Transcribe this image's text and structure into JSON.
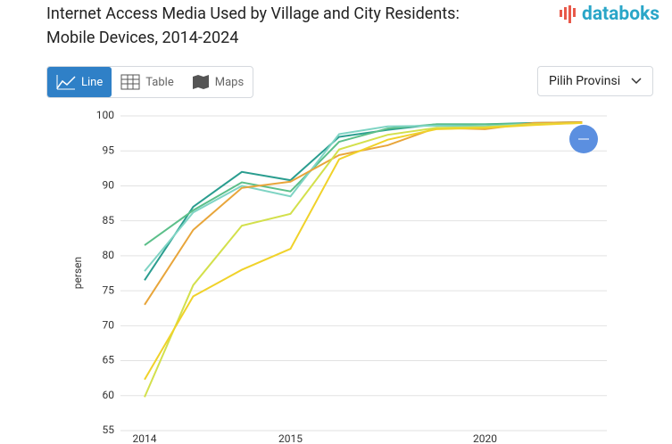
{
  "ui": {
    "logo": "databoks",
    "tabs": [
      "Line",
      "Table",
      "Maps"
    ],
    "province_select": "Pilih Provinsi"
  },
  "chart_data": {
    "type": "line",
    "title": "Internet Access Media Used by Village and City Residents: Mobile Devices, 2014-2024",
    "y_label": "persen",
    "categories": [
      "2014",
      null,
      null,
      "2015",
      null,
      null,
      null,
      "2020",
      null,
      null
    ],
    "ylim": [
      55,
      100
    ],
    "yticks": [
      55,
      60,
      65,
      70,
      75,
      80,
      85,
      90,
      95,
      100
    ],
    "grid": true,
    "series": [
      {
        "color": "#2a9d8f",
        "values": [
          76.5,
          87,
          92,
          90.8,
          97,
          98,
          98.8,
          98.8,
          99,
          99.1
        ]
      },
      {
        "color": "#5cbf8a",
        "values": [
          81.5,
          86.5,
          90.5,
          89.2,
          96.3,
          98.2,
          98.8,
          98.8,
          98.9,
          99
        ]
      },
      {
        "color": "#7fd4c4",
        "values": [
          77.8,
          86.2,
          90,
          88.5,
          97.4,
          98.5,
          98.6,
          98.5,
          98.9,
          99
        ]
      },
      {
        "color": "#e8a53a",
        "values": [
          73,
          83.7,
          89.7,
          90.6,
          94.4,
          95.8,
          98.3,
          98.1,
          99,
          99.1
        ]
      },
      {
        "color": "#d3e04c",
        "values": [
          59.8,
          75.8,
          84.3,
          86,
          95.2,
          97.3,
          98.3,
          98.4,
          98.8,
          99
        ]
      },
      {
        "color": "#f0d22a",
        "values": [
          62.3,
          74.2,
          78,
          81,
          93.8,
          96.6,
          98.1,
          98.3,
          98.7,
          99
        ]
      }
    ]
  }
}
